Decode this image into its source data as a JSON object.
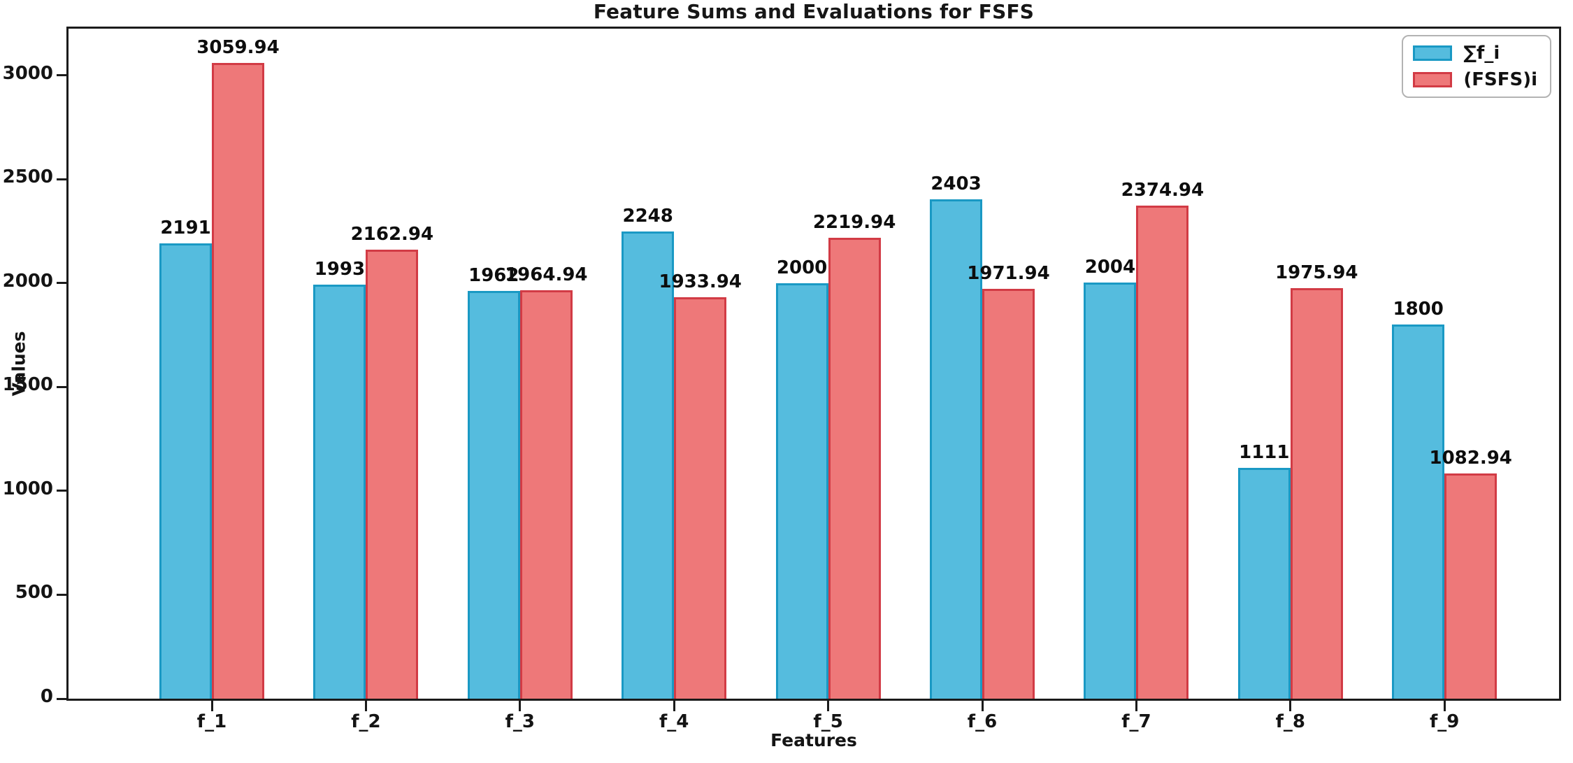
{
  "chart_data": {
    "type": "bar",
    "title": "Feature Sums and Evaluations for FSFS",
    "xlabel": "Features",
    "ylabel": "Values",
    "categories": [
      "f_1",
      "f_2",
      "f_3",
      "f_4",
      "f_5",
      "f_6",
      "f_7",
      "f_8",
      "f_9"
    ],
    "series": [
      {
        "name": "∑f_i",
        "fill_color": "#55BCDE",
        "edge_color": "#1A99C4",
        "values": [
          2191,
          1993,
          1962,
          2248,
          2000,
          2403,
          2004,
          1111,
          1800
        ],
        "labels": [
          "2191",
          "1993",
          "1962",
          "2248",
          "2000",
          "2403",
          "2004",
          "1111",
          "1800"
        ]
      },
      {
        "name": "(FSFS)i",
        "fill_color": "#EE7879",
        "edge_color": "#D23B45",
        "values": [
          3059.94,
          2162.94,
          1964.94,
          1933.94,
          2219.94,
          1971.94,
          2374.94,
          1975.94,
          1082.94
        ],
        "labels": [
          "3059.94",
          "2162.94",
          "1964.94",
          "1933.94",
          "2219.94",
          "1971.94",
          "2374.94",
          "1975.94",
          "1082.94"
        ]
      }
    ],
    "yticks": [
      0,
      500,
      1000,
      1500,
      2000,
      2500,
      3000
    ],
    "ylim": [
      0,
      3225
    ],
    "grid": false,
    "legend_position": "upper right",
    "bar_value_labels": true,
    "axis_color": "#1b1b1b",
    "label_color": "#0d0d0d"
  }
}
